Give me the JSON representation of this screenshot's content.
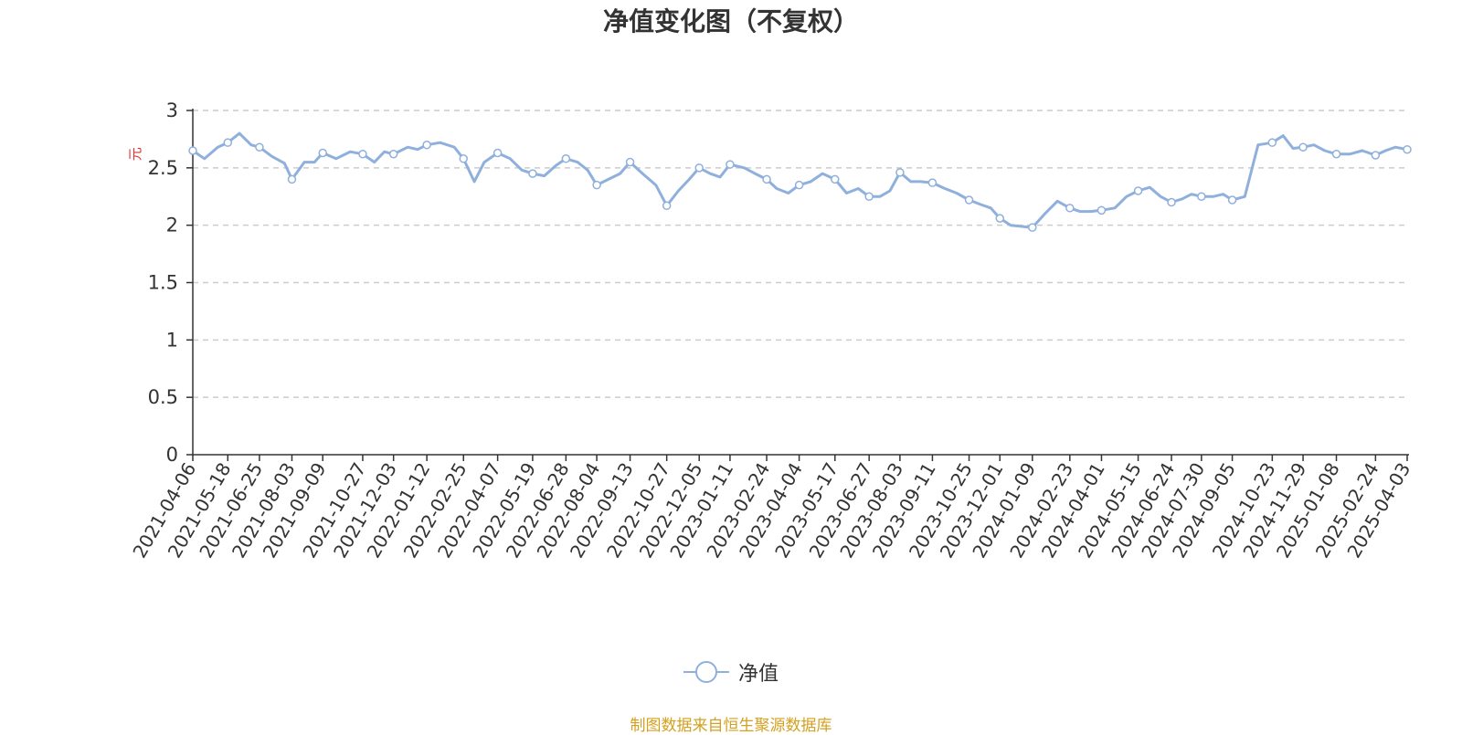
{
  "chart_data": {
    "type": "line",
    "title": "净值变化图（不复权）",
    "ylabel": "元",
    "ylim": [
      0,
      3
    ],
    "y_ticks": [
      "0",
      "0.5",
      "1",
      "1.5",
      "2",
      "2.5",
      "3"
    ],
    "x_ticks": [
      "2021-04-06",
      "2021-05-18",
      "2021-06-25",
      "2021-08-03",
      "2021-09-09",
      "2021-10-27",
      "2021-12-03",
      "2022-01-12",
      "2022-02-25",
      "2022-04-07",
      "2022-05-19",
      "2022-06-28",
      "2022-08-04",
      "2022-09-13",
      "2022-10-27",
      "2022-12-05",
      "2023-01-11",
      "2023-02-24",
      "2023-04-04",
      "2023-05-17",
      "2023-06-27",
      "2023-08-03",
      "2023-09-11",
      "2023-10-25",
      "2023-12-01",
      "2024-01-09",
      "2024-02-23",
      "2024-04-01",
      "2024-05-15",
      "2024-06-24",
      "2024-07-30",
      "2024-09-05",
      "2024-10-23",
      "2024-11-29",
      "2025-01-08",
      "2025-02-24",
      "2025-04-03"
    ],
    "grid": true,
    "legend_position": "bottom",
    "series": [
      {
        "name": "净值",
        "color": "#8fb0dc",
        "x": [
          "2021-04-06",
          "2021-04-20",
          "2021-05-06",
          "2021-05-18",
          "2021-06-01",
          "2021-06-15",
          "2021-06-25",
          "2021-07-10",
          "2021-07-25",
          "2021-08-03",
          "2021-08-18",
          "2021-08-30",
          "2021-09-09",
          "2021-09-25",
          "2021-10-12",
          "2021-10-27",
          "2021-11-10",
          "2021-11-22",
          "2021-12-03",
          "2021-12-20",
          "2022-01-01",
          "2022-01-12",
          "2022-01-28",
          "2022-02-14",
          "2022-02-25",
          "2022-03-10",
          "2022-03-22",
          "2022-04-07",
          "2022-04-22",
          "2022-05-06",
          "2022-05-19",
          "2022-06-02",
          "2022-06-16",
          "2022-06-28",
          "2022-07-12",
          "2022-07-24",
          "2022-08-04",
          "2022-08-18",
          "2022-09-01",
          "2022-09-13",
          "2022-09-28",
          "2022-10-14",
          "2022-10-27",
          "2022-11-10",
          "2022-11-23",
          "2022-12-05",
          "2022-12-18",
          "2022-12-30",
          "2023-01-11",
          "2023-01-28",
          "2023-02-10",
          "2023-02-24",
          "2023-03-08",
          "2023-03-22",
          "2023-04-04",
          "2023-04-18",
          "2023-05-02",
          "2023-05-17",
          "2023-05-31",
          "2023-06-14",
          "2023-06-27",
          "2023-07-10",
          "2023-07-22",
          "2023-08-03",
          "2023-08-16",
          "2023-08-28",
          "2023-09-11",
          "2023-09-26",
          "2023-10-10",
          "2023-10-25",
          "2023-11-08",
          "2023-11-20",
          "2023-12-01",
          "2023-12-14",
          "2023-12-26",
          "2024-01-09",
          "2024-01-24",
          "2024-02-08",
          "2024-02-23",
          "2024-03-06",
          "2024-03-19",
          "2024-04-01",
          "2024-04-17",
          "2024-05-01",
          "2024-05-15",
          "2024-05-29",
          "2024-06-11",
          "2024-06-24",
          "2024-07-07",
          "2024-07-18",
          "2024-07-30",
          "2024-08-13",
          "2024-08-25",
          "2024-09-05",
          "2024-09-20",
          "2024-10-06",
          "2024-10-23",
          "2024-11-05",
          "2024-11-17",
          "2024-11-29",
          "2024-12-12",
          "2024-12-25",
          "2025-01-08",
          "2025-01-24",
          "2025-02-08",
          "2025-02-24",
          "2025-03-08",
          "2025-03-20",
          "2025-04-03"
        ],
        "values": [
          2.65,
          2.58,
          2.68,
          2.72,
          2.8,
          2.7,
          2.68,
          2.6,
          2.54,
          2.4,
          2.55,
          2.55,
          2.63,
          2.58,
          2.64,
          2.62,
          2.55,
          2.64,
          2.62,
          2.68,
          2.66,
          2.7,
          2.72,
          2.68,
          2.58,
          2.38,
          2.55,
          2.63,
          2.58,
          2.48,
          2.45,
          2.43,
          2.52,
          2.58,
          2.55,
          2.48,
          2.35,
          2.4,
          2.45,
          2.55,
          2.45,
          2.35,
          2.17,
          2.3,
          2.4,
          2.5,
          2.45,
          2.42,
          2.53,
          2.5,
          2.45,
          2.4,
          2.32,
          2.28,
          2.35,
          2.38,
          2.45,
          2.4,
          2.28,
          2.32,
          2.25,
          2.25,
          2.3,
          2.46,
          2.38,
          2.38,
          2.37,
          2.32,
          2.28,
          2.22,
          2.18,
          2.15,
          2.06,
          2.0,
          1.99,
          1.98,
          2.1,
          2.21,
          2.15,
          2.12,
          2.12,
          2.13,
          2.15,
          2.25,
          2.3,
          2.33,
          2.25,
          2.2,
          2.23,
          2.27,
          2.25,
          2.25,
          2.27,
          2.22,
          2.25,
          2.7,
          2.72,
          2.78,
          2.67,
          2.68,
          2.7,
          2.65,
          2.62,
          2.62,
          2.65,
          2.61,
          2.65,
          2.68,
          2.66
        ]
      }
    ]
  },
  "source_note": "制图数据来自恒生聚源数据库"
}
